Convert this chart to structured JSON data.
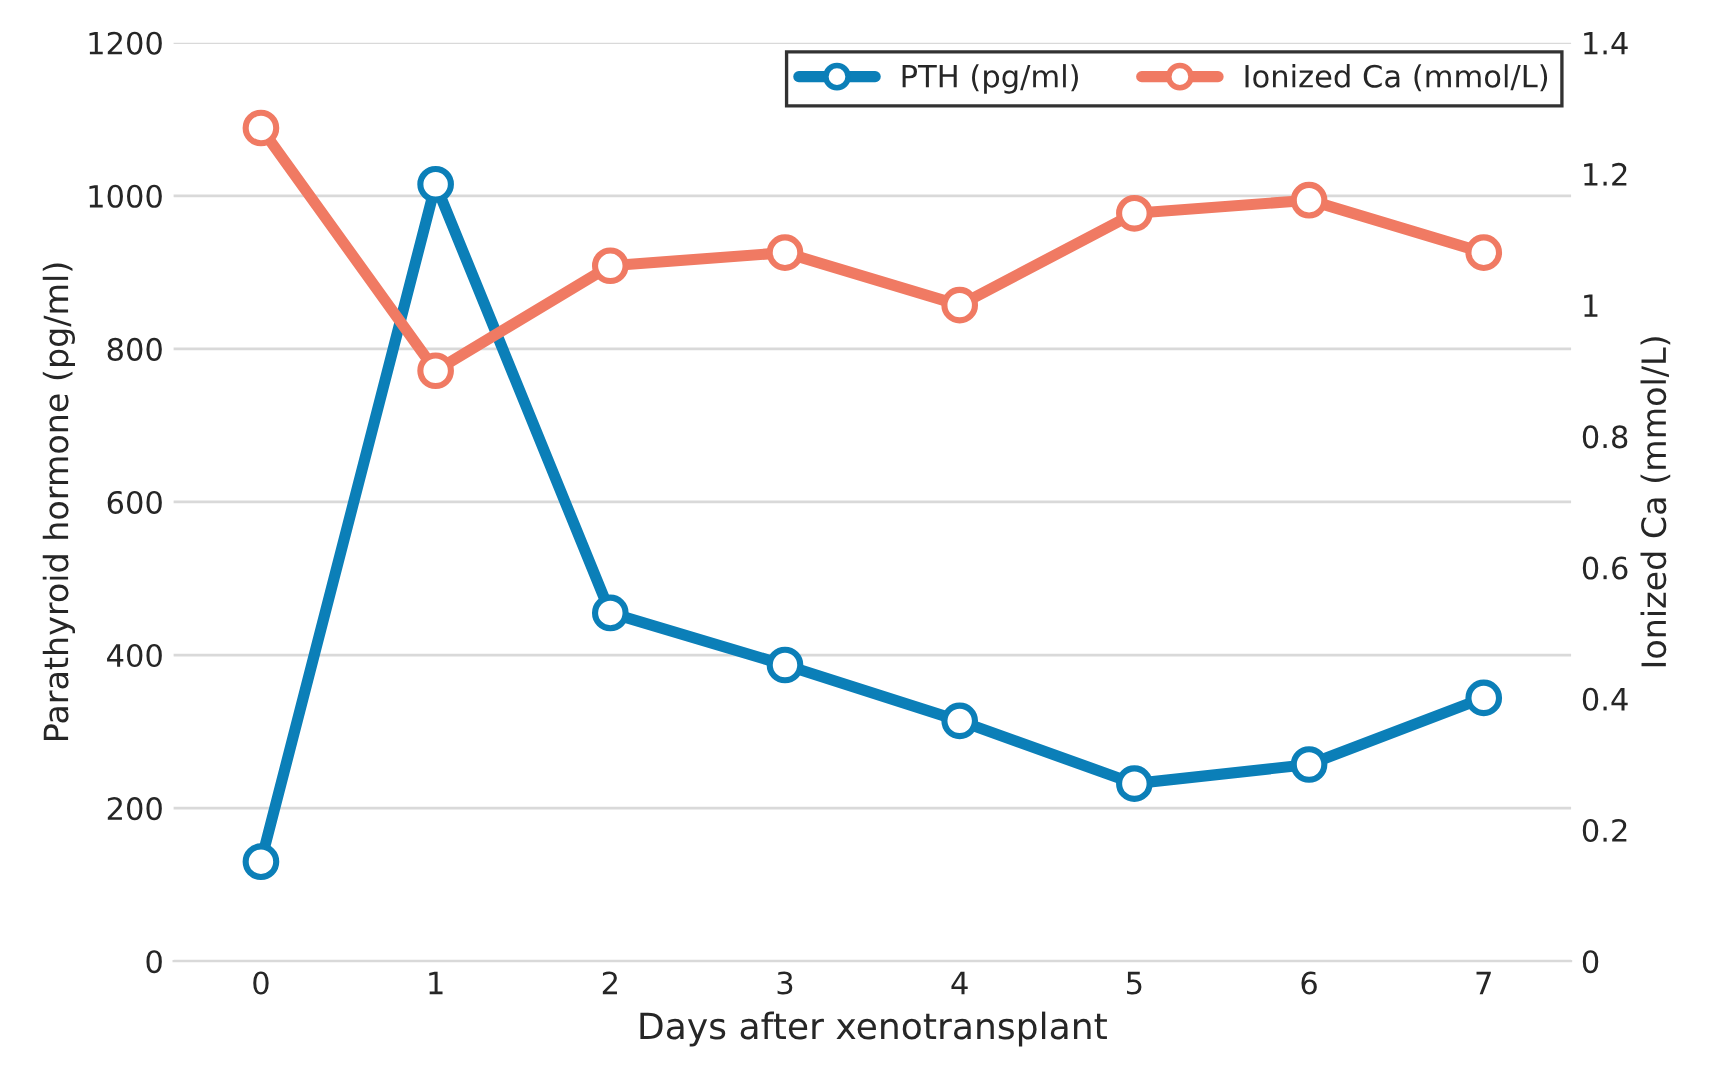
{
  "chart_data": {
    "type": "line",
    "xlabel": "Days after xenotransplant",
    "ylabel": "Parathyroid hormone (pg/ml)",
    "y2label": "Ionized Ca (mmol/L)",
    "categories": [
      "0",
      "1",
      "2",
      "3",
      "4",
      "5",
      "6",
      "7"
    ],
    "series": [
      {
        "name": "PTH (pg/ml)",
        "color": "#0b7fb8",
        "values": [
          130,
          1015,
          455,
          387,
          314,
          232,
          257,
          344
        ]
      },
      {
        "name": "Ionized Ca (mmol/L)",
        "color": "#f07a63",
        "axis": "y2",
        "values": [
          1.27,
          0.9,
          1.06,
          1.08,
          1.0,
          1.14,
          1.16,
          1.08
        ]
      }
    ],
    "ylim": [
      0,
      1200
    ],
    "yticks": [
      0,
      200,
      400,
      600,
      800,
      1000,
      1200
    ],
    "y2lim": [
      0,
      1.4
    ],
    "y2ticks": [
      0,
      {
        "value": 0.2,
        "label": "0.2"
      },
      {
        "value": 0.4,
        "label": "0.4"
      },
      {
        "value": 0.6,
        "label": "0.6"
      },
      {
        "value": 0.8,
        "label": "0.8"
      },
      1,
      {
        "value": 1.2,
        "label": "1.2"
      },
      {
        "value": 1.4,
        "label": "1.4"
      }
    ],
    "grid": "y",
    "legend": "top right",
    "marker": "circle",
    "line_style": "solid"
  }
}
